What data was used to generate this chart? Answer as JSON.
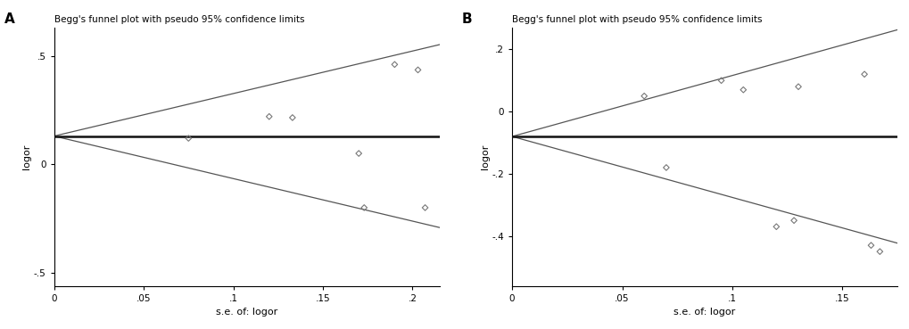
{
  "panel_A": {
    "title": "Begg's funnel plot with pseudo 95% confidence limits",
    "xlabel": "s.e. of: logor",
    "ylabel": "logor",
    "mean_logor": 0.13,
    "xlim": [
      0,
      0.215
    ],
    "ylim": [
      -0.56,
      0.63
    ],
    "xticks": [
      0,
      0.05,
      0.1,
      0.15,
      0.2
    ],
    "yticks": [
      -0.5,
      0,
      0.5
    ],
    "ytick_labels": [
      "-.5",
      "0",
      ".5"
    ],
    "xtick_labels": [
      "0",
      ".05",
      ".1",
      ".15",
      ".2"
    ],
    "points_x": [
      0.075,
      0.12,
      0.133,
      0.17,
      0.173,
      0.19,
      0.203,
      0.207
    ],
    "points_y": [
      0.12,
      0.22,
      0.215,
      0.05,
      -0.2,
      0.46,
      0.435,
      -0.2
    ],
    "label": "A"
  },
  "panel_B": {
    "title": "Begg's funnel plot with pseudo 95% confidence limits",
    "xlabel": "s.e. of: logor",
    "ylabel": "logor",
    "mean_logor": -0.08,
    "xlim": [
      0,
      0.175
    ],
    "ylim": [
      -0.56,
      0.27
    ],
    "xticks": [
      0,
      0.05,
      0.1,
      0.15
    ],
    "yticks": [
      -0.4,
      -0.2,
      0,
      0.2
    ],
    "ytick_labels": [
      "-.4",
      "-.2",
      "0",
      ".2"
    ],
    "xtick_labels": [
      "0",
      ".05",
      ".1",
      ".15"
    ],
    "points_x": [
      0.06,
      0.07,
      0.095,
      0.105,
      0.12,
      0.128,
      0.13,
      0.16,
      0.163,
      0.167
    ],
    "points_y": [
      0.05,
      -0.18,
      0.1,
      0.07,
      -0.37,
      -0.35,
      0.08,
      0.12,
      -0.43,
      -0.45
    ],
    "label": "B"
  },
  "bg_color": "#ffffff",
  "point_color": "#777777",
  "line_color": "#555555",
  "mean_line_color": "#111111",
  "title_fontsize": 7.5,
  "label_fontsize": 8,
  "tick_fontsize": 7.5,
  "panel_label_fontsize": 11
}
